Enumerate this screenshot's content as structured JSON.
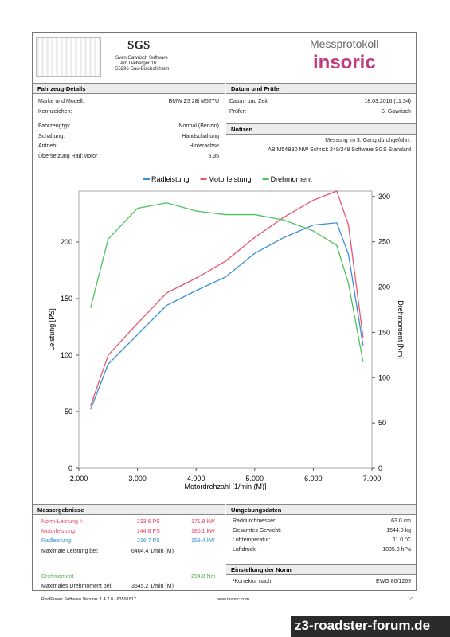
{
  "header": {
    "logo_title": "SGS",
    "logo_lines": [
      "Sven Gawrisch Software",
      "Am Daiberger 10",
      "55296 Gau-Bischofsheim"
    ],
    "title": "Messprotokoll",
    "brand": "insoric"
  },
  "vehicle": {
    "title": "Fahrzeug-Details",
    "rows": [
      [
        "Marke und Modell:",
        "BMW Z3 28i M52TU"
      ],
      [
        "Kennzeichen:",
        ""
      ],
      [
        "Fahrzeugtyp:",
        "Normal (Benzin)"
      ],
      [
        "Schaltung:",
        "Handschaltung"
      ],
      [
        "Antrieb:",
        "Hinterachse"
      ],
      [
        "Übersetzung Rad:Motor :",
        "5.35"
      ]
    ]
  },
  "test": {
    "title": "Datum und Prüfer",
    "rows": [
      [
        "Datum und Zeit:",
        "18.03.2016 (11:34)"
      ],
      [
        "Prüfer:",
        "S. Gawrisch"
      ]
    ]
  },
  "notes": {
    "title": "Notizen",
    "lines": [
      "Messung im 3. Gang durchgeführt.",
      "AB M54B30  NW Schrick 248/248 Software SGS Standard"
    ]
  },
  "chart_data": {
    "type": "line",
    "xlabel": "Motordrehzahl [1/min (M)]",
    "ylabel": "Leistung [PS]",
    "y2label": "Drehmoment [Nm]",
    "x": [
      2200,
      2500,
      3000,
      3500,
      4000,
      4500,
      5000,
      5500,
      6000,
      6400,
      6600,
      6850
    ],
    "series": [
      {
        "name": "Radleistung",
        "color": "#3a8fd0",
        "values": [
          52,
          92,
          118,
          144,
          157,
          169,
          190,
          204,
          215,
          217,
          189,
          108
        ]
      },
      {
        "name": "Motorleistung",
        "color": "#e8566e",
        "values": [
          55,
          100,
          128,
          155,
          168,
          183,
          204,
          222,
          237,
          245,
          215,
          115
        ]
      },
      {
        "name": "Drehmoment",
        "color": "#4cc05a",
        "axis": "y2",
        "values": [
          177,
          253,
          287,
          293,
          284,
          280,
          280,
          274,
          262,
          246,
          204,
          117
        ]
      }
    ],
    "xlim": [
      2000,
      7000
    ],
    "xticks": [
      {
        "value": 2000,
        "label": "2.000"
      },
      {
        "value": 3000,
        "label": "3.000"
      },
      {
        "value": 4000,
        "label": "4.000"
      },
      {
        "value": 5000,
        "label": "5.000"
      },
      {
        "value": 6000,
        "label": "6.000"
      },
      {
        "value": 7000,
        "label": "7.000"
      }
    ],
    "ylim": [
      0,
      245
    ],
    "yticks": [
      0,
      50,
      100,
      150,
      200
    ],
    "y2lim": [
      0,
      306
    ],
    "y2ticks": [
      0,
      50,
      100,
      150,
      200,
      250,
      300
    ]
  },
  "results": {
    "title": "Messergebnisse",
    "rows": [
      [
        "Norm-Leistung ¹:",
        "233.6 PS",
        "171.8 kW"
      ],
      [
        "Motorleistung:",
        "244.8 PS",
        "180.1 kW"
      ],
      [
        "Radleistung:",
        "216.7 PS",
        "159.4 kW"
      ]
    ],
    "max_power": [
      "Maximale Leistung bei:",
      "6404.4 1/min (M)"
    ],
    "torque": [
      "Drehmoment",
      "294.8 Nm"
    ],
    "max_torque": [
      "Maximales Drehmoment bei:",
      "3545.2 1/min (M)"
    ]
  },
  "environment": {
    "title": "Umgebungsdaten",
    "rows": [
      [
        "Raddurchmesser:",
        "63.0 cm"
      ],
      [
        "Gesamtes Gewicht:",
        "1544.0 kg"
      ],
      [
        "Lufttemperatur:",
        "11.0 °C"
      ],
      [
        "Luftdruck:",
        "1005.0 hPa"
      ]
    ]
  },
  "norm": {
    "title": "Einstellung der Norm",
    "rows": [
      [
        "¹Korrektur nach:",
        "EWG 80/1269"
      ]
    ]
  },
  "footer": {
    "version": "RealPower Software Version: 1.4.2.0 / 63591817",
    "url": "www.insoric.com",
    "page": "1/1"
  },
  "watermark": "z3-roadster-forum.de"
}
